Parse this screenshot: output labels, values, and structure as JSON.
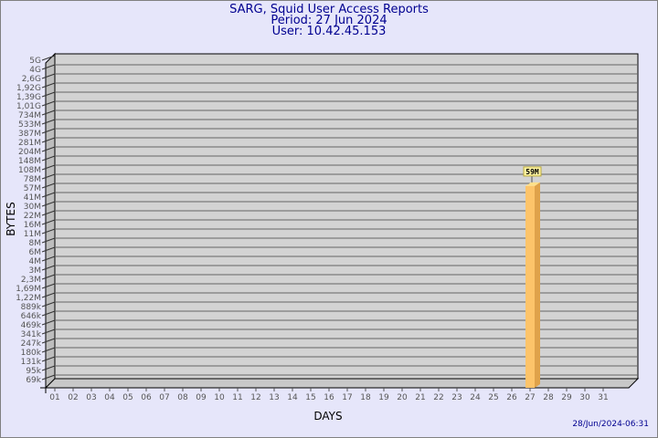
{
  "chart_data": {
    "type": "bar",
    "title": "SARG, Squid User Access Reports",
    "subtitle_period": "Period: 27 Jun 2024",
    "subtitle_user": "User: 10.42.45.153",
    "xlabel": "DAYS",
    "ylabel": "BYTES",
    "y_scale": "log",
    "y_tick_labels": [
      "5G",
      "4G",
      "2,6G",
      "1,92G",
      "1,39G",
      "1,01G",
      "734M",
      "533M",
      "387M",
      "281M",
      "204M",
      "148M",
      "108M",
      "78M",
      "57M",
      "41M",
      "30M",
      "22M",
      "16M",
      "11M",
      "8M",
      "6M",
      "4M",
      "3M",
      "2,3M",
      "1,69M",
      "1,22M",
      "889k",
      "646k",
      "469k",
      "341k",
      "247k",
      "180k",
      "131k",
      "95k",
      "69k"
    ],
    "categories": [
      "01",
      "02",
      "03",
      "04",
      "05",
      "06",
      "07",
      "08",
      "09",
      "10",
      "11",
      "12",
      "13",
      "14",
      "15",
      "16",
      "17",
      "18",
      "19",
      "20",
      "21",
      "22",
      "23",
      "24",
      "25",
      "26",
      "27",
      "28",
      "29",
      "30",
      "31"
    ],
    "values": [
      null,
      null,
      null,
      null,
      null,
      null,
      null,
      null,
      null,
      null,
      null,
      null,
      null,
      null,
      null,
      null,
      null,
      null,
      null,
      null,
      null,
      null,
      null,
      null,
      null,
      null,
      59000000,
      null,
      null,
      null,
      null
    ],
    "data_labels": {
      "27": "59M"
    },
    "grid": true,
    "bar_color": "#fdc46a",
    "generated": "28/Jun/2024-06:31"
  }
}
